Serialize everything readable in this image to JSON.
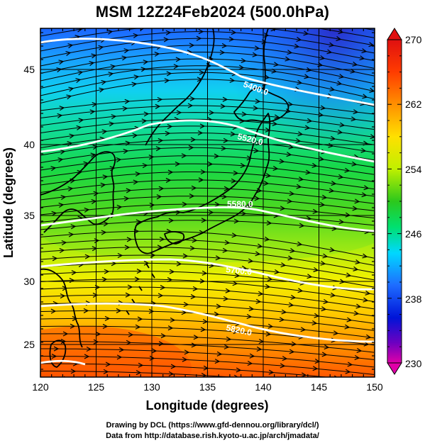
{
  "title": "MSM 12Z24Feb2024 (500.0hPa)",
  "axes": {
    "xlabel": "Longitude (degrees)",
    "ylabel": "Latitude  (degrees)",
    "xticks": [
      "120",
      "125",
      "130",
      "135",
      "140",
      "145",
      "150"
    ],
    "yticks": [
      "25",
      "30",
      "35",
      "40",
      "45"
    ],
    "xlim": [
      120,
      150
    ],
    "ylim": [
      22.5,
      47.8
    ]
  },
  "colorbar": {
    "ticks": [
      "270",
      "262",
      "254",
      "246",
      "238",
      "230"
    ],
    "range": [
      230,
      270
    ],
    "colors": [
      "#e000a8",
      "#7000c0",
      "#0014d8",
      "#1e6cff",
      "#00d8ff",
      "#00e070",
      "#2cc81c",
      "#c0f000",
      "#ffe000",
      "#ff9000",
      "#ff3c00",
      "#e01010"
    ]
  },
  "contours": [
    {
      "label": "5400.0"
    },
    {
      "label": "5520.0"
    },
    {
      "label": "5580.0"
    },
    {
      "label": "5700.0"
    },
    {
      "label": "5820.0"
    }
  ],
  "credits": {
    "line1": "Drawing by DCL (https://www.gfd-dennou.org/library/dcl/)",
    "line2": "Data from http://database.rish.kyoto-u.ac.jp/arch/jmadata/"
  }
}
